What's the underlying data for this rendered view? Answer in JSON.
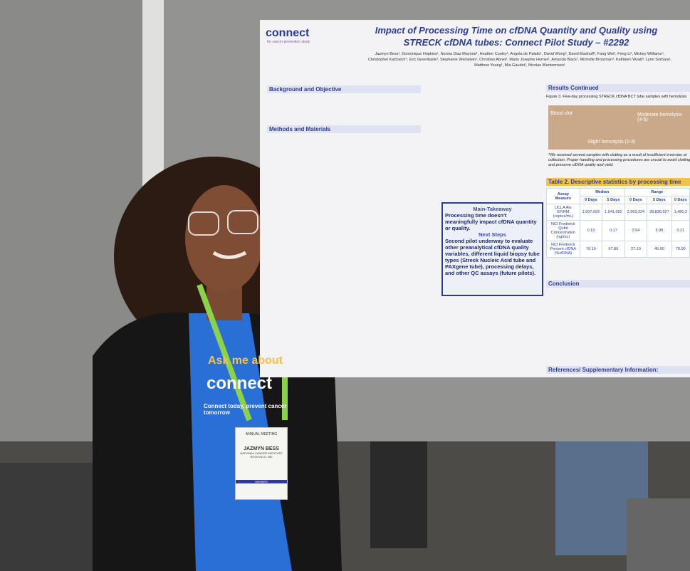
{
  "poster": {
    "logo": "connect",
    "logo_tagline": "for cancer prevention study",
    "title": "Impact of Processing Time on cfDNA Quantity and Quality using STRECK cfDNA tubes: Connect Pilot Study – #2292",
    "authors": "Jazmyn Bess¹, Domonique Hopkins¹, Norma Diaz Mayoral¹, Heather Cooley¹, Angela de Palalis¹, David Wong², David Elashoff², Fang Wei², Feng Li², Mickey Williams⁴, Christopher Karlovich⁴, Eric Greenbank³, Stephanie Weinstein¹, Christian Abnet¹, Mario Josephe Horner¹, Amanda Black¹, Michelle Brotzman³, Kathleen Wyatt³, Lynn Sorbara¹, Matthew Young¹, Mia Gaudet¹, Nicolas Wentzensen¹",
    "sections": {
      "background": "Background and Objective",
      "methods": "Methods and Materials",
      "results": "Results Continued",
      "conclusion": "Conclusion",
      "references": "References/ Supplementary Information:"
    },
    "figure3": {
      "caption": "Figure 3. Five-day processing STRECK cfDNA BCT tube samples with hemolysis",
      "labels": [
        "Blood clot",
        "Slight hemolysis (2-3)",
        "Moderate hemolysis (4-5)"
      ],
      "quote": "*We received several samples with clotting as a result of insufficient inversion at collection. Proper handling and processing procedures are crucial to avoid clotting and preserve cfDNA quality and yield."
    },
    "main_takeaway": {
      "heading": "Main-Takeaway",
      "point": "Processing time doesn't meaningfully impact cfDNA quantity or quality.",
      "next_heading": "Next Steps",
      "next_point": "Second pilot underway to evaluate other preanalytical cfDNA quality variables, different liquid biopsy tube types (Streck Nucleic Acid tube and PAXgene tube), processing delays, and other QC assays (future pilots)."
    },
    "table2": {
      "caption": "Table 2. Descriptive statistics by processing time",
      "group_header": [
        "Assay Measure",
        "Median",
        "Range"
      ],
      "sub_header": [
        "0 Days",
        "5 Days",
        "0 Days",
        "5 Days",
        "0 Days"
      ],
      "rows": [
        [
          "UCLA Alu EFIRM (copies/mL)",
          "1,607,692",
          "1,641,092",
          "2,963,324",
          "28,836,927",
          "1,480,3"
        ],
        [
          "NCI Frederick Qubit Concentration (ng/mL)",
          "0.19",
          "0.17",
          "0.54",
          "5.98",
          "0.21"
        ],
        [
          "NCI Frederick Percent cfDNA (%cfDNA)",
          "76.10",
          "67.80",
          "27.10",
          "46.90",
          "76.90"
        ]
      ]
    }
  },
  "badge": {
    "event": "ANNUAL MEETING",
    "name": "JAZMYN BESS",
    "organization": "NATIONAL CANCER INSTITUTE",
    "location": "ROCKVILLE, MD",
    "role": "MEMBER"
  },
  "shirt": {
    "line1": "Ask me about",
    "logo": "connect",
    "tagline": "Connect today, prevent cancer tomorrow"
  }
}
